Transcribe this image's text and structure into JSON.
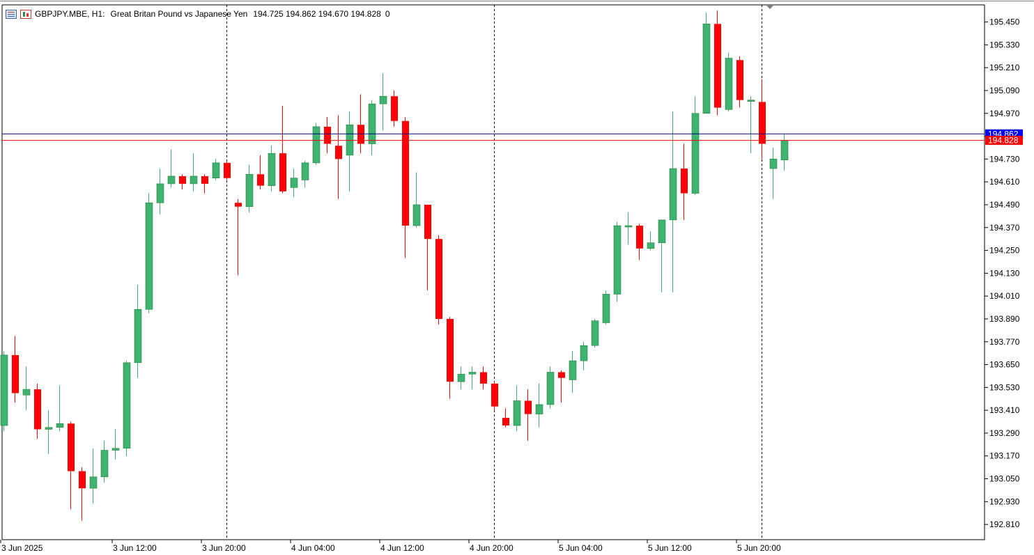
{
  "header": {
    "symbol": "GBPJPY.MBE, H1:",
    "description": "Great Britan Pound vs Japanese Yen",
    "ohlc": "194.725 194.862 194.670 194.828",
    "volume": "0"
  },
  "colors": {
    "bull": "#3cb371",
    "bear": "#ff0000",
    "ask_line": "#000080",
    "bid_line": "#ff0000",
    "ask_label_bg": "#0000ff",
    "bid_label_bg": "#ff0000",
    "grid_separator": "#000000",
    "background": "#ffffff"
  },
  "price_labels": {
    "ask": "194.862",
    "bid": "194.828"
  },
  "chart_data": {
    "type": "candlestick",
    "timeframe": "H1",
    "ylim": [
      192.73,
      195.54
    ],
    "y_ticks": [
      "195.450",
      "195.330",
      "195.210",
      "195.090",
      "194.970",
      "194.850",
      "194.730",
      "194.610",
      "194.490",
      "194.370",
      "194.250",
      "194.130",
      "194.010",
      "193.890",
      "193.770",
      "193.650",
      "193.530",
      "193.410",
      "193.290",
      "193.170",
      "193.050",
      "192.930",
      "192.810"
    ],
    "x_ticks": [
      {
        "label": "3 Jun 2025",
        "index": 0
      },
      {
        "label": "3 Jun 12:00",
        "index": 10
      },
      {
        "label": "3 Jun 20:00",
        "index": 18
      },
      {
        "label": "4 Jun 04:00",
        "index": 26
      },
      {
        "label": "4 Jun 12:00",
        "index": 34
      },
      {
        "label": "4 Jun 20:00",
        "index": 42
      },
      {
        "label": "5 Jun 04:00",
        "index": 50
      },
      {
        "label": "5 Jun 12:00",
        "index": 58
      },
      {
        "label": "5 Jun 20:00",
        "index": 66
      }
    ],
    "separators": [
      20,
      44,
      68
    ],
    "candles": [
      {
        "o": 193.33,
        "h": 193.72,
        "l": 193.3,
        "c": 193.7
      },
      {
        "o": 193.7,
        "h": 193.8,
        "l": 193.45,
        "c": 193.5
      },
      {
        "o": 193.49,
        "h": 193.64,
        "l": 193.41,
        "c": 193.52
      },
      {
        "o": 193.52,
        "h": 193.55,
        "l": 193.26,
        "c": 193.31
      },
      {
        "o": 193.31,
        "h": 193.41,
        "l": 193.18,
        "c": 193.32
      },
      {
        "o": 193.32,
        "h": 193.54,
        "l": 193.3,
        "c": 193.34
      },
      {
        "o": 193.34,
        "h": 193.35,
        "l": 192.89,
        "c": 193.09
      },
      {
        "o": 193.09,
        "h": 193.11,
        "l": 192.83,
        "c": 193.0
      },
      {
        "o": 193.0,
        "h": 193.21,
        "l": 192.92,
        "c": 193.06
      },
      {
        "o": 193.06,
        "h": 193.25,
        "l": 193.03,
        "c": 193.2
      },
      {
        "o": 193.2,
        "h": 193.31,
        "l": 193.15,
        "c": 193.21
      },
      {
        "o": 193.21,
        "h": 193.67,
        "l": 193.17,
        "c": 193.66
      },
      {
        "o": 193.66,
        "h": 194.07,
        "l": 193.58,
        "c": 193.94
      },
      {
        "o": 193.94,
        "h": 194.55,
        "l": 193.92,
        "c": 194.5
      },
      {
        "o": 194.5,
        "h": 194.68,
        "l": 194.44,
        "c": 194.6
      },
      {
        "o": 194.6,
        "h": 194.78,
        "l": 194.58,
        "c": 194.64
      },
      {
        "o": 194.64,
        "h": 194.65,
        "l": 194.57,
        "c": 194.6
      },
      {
        "o": 194.6,
        "h": 194.76,
        "l": 194.56,
        "c": 194.64
      },
      {
        "o": 194.64,
        "h": 194.65,
        "l": 194.55,
        "c": 194.6
      },
      {
        "o": 194.63,
        "h": 194.73,
        "l": 194.62,
        "c": 194.71
      },
      {
        "o": 194.71,
        "h": 194.72,
        "l": 194.62,
        "c": 194.63
      },
      {
        "o": 194.5,
        "h": 194.52,
        "l": 194.12,
        "c": 194.48
      },
      {
        "o": 194.48,
        "h": 194.7,
        "l": 194.45,
        "c": 194.65
      },
      {
        "o": 194.65,
        "h": 194.75,
        "l": 194.57,
        "c": 194.59
      },
      {
        "o": 194.59,
        "h": 194.8,
        "l": 194.56,
        "c": 194.76
      },
      {
        "o": 194.76,
        "h": 195.01,
        "l": 194.55,
        "c": 194.56
      },
      {
        "o": 194.58,
        "h": 194.68,
        "l": 194.53,
        "c": 194.63
      },
      {
        "o": 194.62,
        "h": 194.72,
        "l": 194.58,
        "c": 194.71
      },
      {
        "o": 194.71,
        "h": 194.92,
        "l": 194.7,
        "c": 194.9
      },
      {
        "o": 194.9,
        "h": 194.95,
        "l": 194.76,
        "c": 194.81
      },
      {
        "o": 194.8,
        "h": 194.96,
        "l": 194.52,
        "c": 194.73
      },
      {
        "o": 194.75,
        "h": 194.98,
        "l": 194.56,
        "c": 194.91
      },
      {
        "o": 194.91,
        "h": 195.07,
        "l": 194.76,
        "c": 194.81
      },
      {
        "o": 194.81,
        "h": 195.04,
        "l": 194.75,
        "c": 195.02
      },
      {
        "o": 195.02,
        "h": 195.18,
        "l": 194.88,
        "c": 195.06
      },
      {
        "o": 195.06,
        "h": 195.09,
        "l": 194.9,
        "c": 194.93
      },
      {
        "o": 194.93,
        "h": 194.95,
        "l": 194.21,
        "c": 194.38
      },
      {
        "o": 194.38,
        "h": 194.66,
        "l": 194.37,
        "c": 194.49
      },
      {
        "o": 194.49,
        "h": 194.49,
        "l": 194.04,
        "c": 194.31
      },
      {
        "o": 194.31,
        "h": 194.33,
        "l": 193.86,
        "c": 193.89
      },
      {
        "o": 193.89,
        "h": 193.9,
        "l": 193.47,
        "c": 193.56
      },
      {
        "o": 193.56,
        "h": 193.64,
        "l": 193.52,
        "c": 193.6
      },
      {
        "o": 193.6,
        "h": 193.64,
        "l": 193.52,
        "c": 193.61
      },
      {
        "o": 193.61,
        "h": 193.64,
        "l": 193.52,
        "c": 193.55
      },
      {
        "o": 193.55,
        "h": 193.56,
        "l": 193.41,
        "c": 193.43
      },
      {
        "o": 193.37,
        "h": 193.42,
        "l": 193.32,
        "c": 193.33
      },
      {
        "o": 193.33,
        "h": 193.54,
        "l": 193.3,
        "c": 193.46
      },
      {
        "o": 193.46,
        "h": 193.52,
        "l": 193.25,
        "c": 193.39
      },
      {
        "o": 193.39,
        "h": 193.55,
        "l": 193.32,
        "c": 193.44
      },
      {
        "o": 193.44,
        "h": 193.64,
        "l": 193.42,
        "c": 193.61
      },
      {
        "o": 193.61,
        "h": 193.62,
        "l": 193.45,
        "c": 193.58
      },
      {
        "o": 193.57,
        "h": 193.72,
        "l": 193.5,
        "c": 193.67
      },
      {
        "o": 193.67,
        "h": 193.77,
        "l": 193.62,
        "c": 193.75
      },
      {
        "o": 193.75,
        "h": 193.89,
        "l": 193.74,
        "c": 193.88
      },
      {
        "o": 193.87,
        "h": 194.04,
        "l": 193.86,
        "c": 194.02
      },
      {
        "o": 194.02,
        "h": 194.4,
        "l": 193.98,
        "c": 194.38
      },
      {
        "o": 194.38,
        "h": 194.45,
        "l": 194.28,
        "c": 194.38
      },
      {
        "o": 194.38,
        "h": 194.39,
        "l": 194.2,
        "c": 194.26
      },
      {
        "o": 194.26,
        "h": 194.35,
        "l": 194.25,
        "c": 194.29
      },
      {
        "o": 194.29,
        "h": 194.41,
        "l": 194.03,
        "c": 194.41
      },
      {
        "o": 194.41,
        "h": 194.98,
        "l": 194.03,
        "c": 194.68
      },
      {
        "o": 194.68,
        "h": 194.81,
        "l": 194.41,
        "c": 194.55
      },
      {
        "o": 194.55,
        "h": 195.06,
        "l": 194.54,
        "c": 194.97
      },
      {
        "o": 194.97,
        "h": 195.5,
        "l": 194.97,
        "c": 195.44
      },
      {
        "o": 195.44,
        "h": 195.51,
        "l": 194.96,
        "c": 195.0
      },
      {
        "o": 194.99,
        "h": 195.29,
        "l": 194.98,
        "c": 195.26
      },
      {
        "o": 195.25,
        "h": 195.27,
        "l": 195.0,
        "c": 195.04
      },
      {
        "o": 195.04,
        "h": 195.06,
        "l": 194.76,
        "c": 195.04
      },
      {
        "o": 195.03,
        "h": 195.15,
        "l": 194.73,
        "c": 194.81
      },
      {
        "o": 194.68,
        "h": 194.79,
        "l": 194.52,
        "c": 194.73
      },
      {
        "o": 194.725,
        "h": 194.862,
        "l": 194.67,
        "c": 194.828
      }
    ]
  }
}
